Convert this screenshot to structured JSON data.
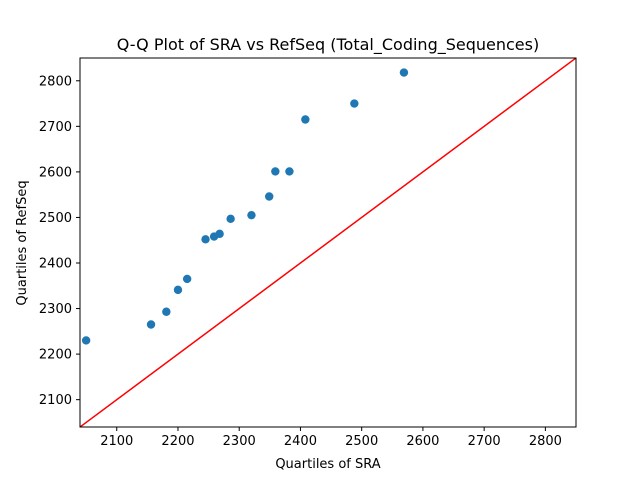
{
  "chart_data": {
    "type": "scatter",
    "title": "Q-Q Plot of SRA vs RefSeq (Total_Coding_Sequences)",
    "xlabel": "Quartiles of SRA",
    "ylabel": "Quartiles of RefSeq",
    "xlim": [
      2040,
      2850
    ],
    "ylim": [
      2040,
      2850
    ],
    "xticks": [
      2100,
      2200,
      2300,
      2400,
      2500,
      2600,
      2700,
      2800
    ],
    "yticks": [
      2100,
      2200,
      2300,
      2400,
      2500,
      2600,
      2700,
      2800
    ],
    "grid": false,
    "reference_line": {
      "from": [
        2040,
        2040
      ],
      "to": [
        2850,
        2850
      ],
      "color": "#ff0000"
    },
    "point_color": "#1f77b4",
    "points": [
      [
        2050,
        2230
      ],
      [
        2156,
        2265
      ],
      [
        2181,
        2293
      ],
      [
        2200,
        2341
      ],
      [
        2215,
        2365
      ],
      [
        2245,
        2452
      ],
      [
        2259,
        2458
      ],
      [
        2268,
        2464
      ],
      [
        2286,
        2497
      ],
      [
        2320,
        2505
      ],
      [
        2349,
        2546
      ],
      [
        2359,
        2601
      ],
      [
        2382,
        2601
      ],
      [
        2408,
        2715
      ],
      [
        2488,
        2750
      ],
      [
        2569,
        2818
      ]
    ]
  }
}
